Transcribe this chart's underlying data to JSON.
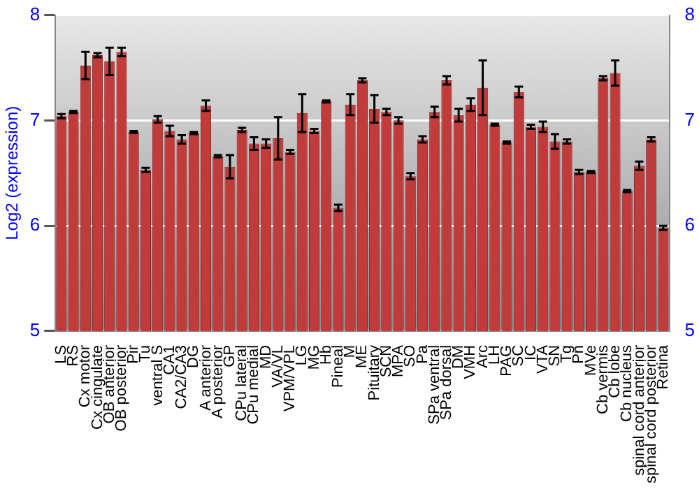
{
  "chart_data": {
    "type": "bar",
    "ylabel": "Log2 (expression)",
    "categories": [
      "LS",
      "RS",
      "Cx motor",
      "Cx cingulate",
      "OB anterior",
      "OB posterior",
      "Pir",
      "Tu",
      "ventral S",
      "CA1",
      "CA2/CA3",
      "DG",
      "A anterior",
      "A posterior",
      "GP",
      "CPu lateral",
      "CPu medial",
      "MD",
      "VA/VL",
      "VPM/VPL",
      "LG",
      "MG",
      "Hb",
      "Pineal",
      "M",
      "ME",
      "Pituitary",
      "SCN",
      "MPA",
      "SO",
      "Pa",
      "SPa ventral",
      "SPa dorsal",
      "DM",
      "VMH",
      "Arc",
      "LH",
      "PAG",
      "SC",
      "IC",
      "VTA",
      "SN",
      "Tg",
      "Pn",
      "MVe",
      "Cb vermis",
      "Cb lobe",
      "Cb nucleus",
      "spinal cord anterior",
      "spinal cord posterior",
      "Retina"
    ],
    "values": [
      7.04,
      7.08,
      7.52,
      7.62,
      7.56,
      7.65,
      6.89,
      6.53,
      7.01,
      6.9,
      6.82,
      6.88,
      7.14,
      6.66,
      6.56,
      6.91,
      6.78,
      6.78,
      6.83,
      6.7,
      7.07,
      6.9,
      7.18,
      6.17,
      7.15,
      7.38,
      7.11,
      7.08,
      7.0,
      6.47,
      6.82,
      7.08,
      7.38,
      7.05,
      7.15,
      7.31,
      6.96,
      6.79,
      7.27,
      6.94,
      6.94,
      6.8,
      6.8,
      6.51,
      6.51,
      7.4,
      7.45,
      6.33,
      6.57,
      6.82,
      5.98
    ],
    "errors": [
      0.02,
      0.01,
      0.13,
      0.02,
      0.13,
      0.04,
      0.01,
      0.02,
      0.03,
      0.05,
      0.04,
      0.01,
      0.05,
      0.01,
      0.11,
      0.02,
      0.06,
      0.04,
      0.2,
      0.02,
      0.18,
      0.02,
      0.01,
      0.03,
      0.1,
      0.02,
      0.13,
      0.03,
      0.03,
      0.03,
      0.03,
      0.05,
      0.04,
      0.06,
      0.06,
      0.26,
      0.01,
      0.01,
      0.05,
      0.02,
      0.05,
      0.07,
      0.02,
      0.02,
      0.01,
      0.02,
      0.12,
      0.01,
      0.04,
      0.02,
      0.02
    ],
    "color": "#c23b3b",
    "ylim": [
      5,
      8
    ],
    "yticks": [
      5,
      6,
      7,
      8
    ],
    "y2lim": [
      5,
      8
    ],
    "y2ticks": [
      5,
      6,
      7,
      8
    ],
    "grid": "y"
  }
}
